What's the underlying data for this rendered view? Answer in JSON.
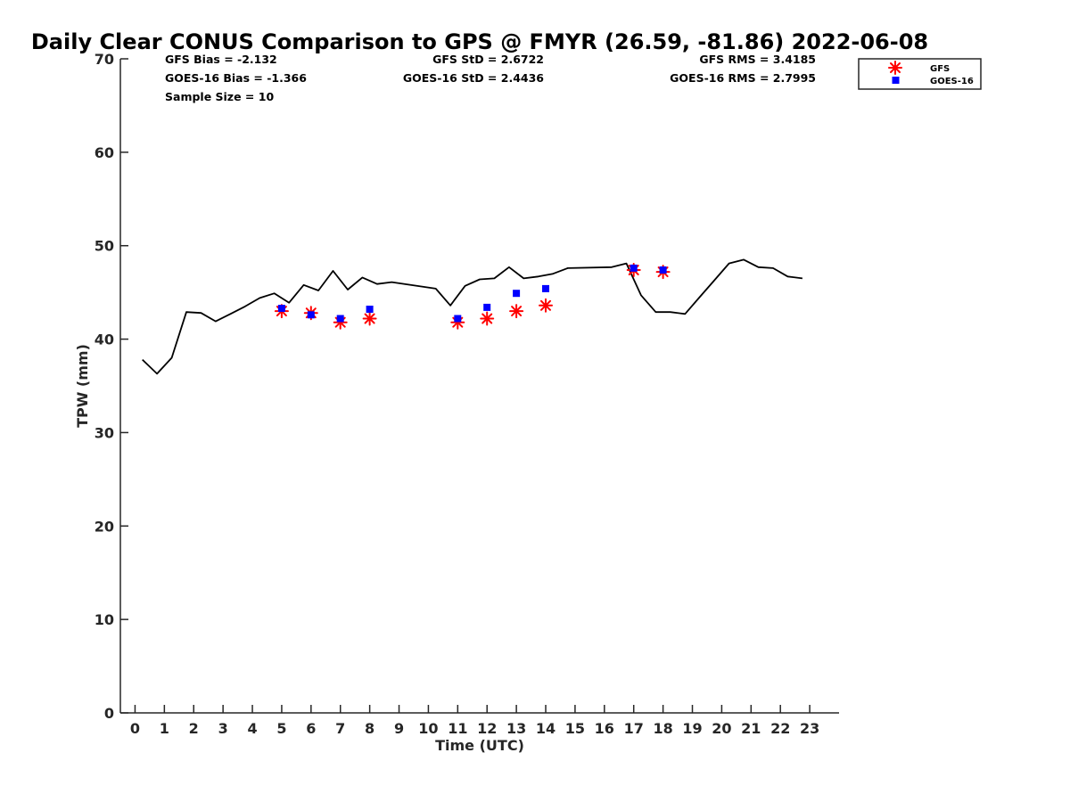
{
  "chart_data": {
    "type": "line",
    "title": "Daily Clear CONUS Comparison to GPS @ FMYR (26.59, -81.86) 2022-06-08",
    "xlabel": "Time (UTC)",
    "ylabel": "TPW (mm)",
    "xlim": [
      -0.5,
      24
    ],
    "ylim": [
      0,
      70
    ],
    "xticks": [
      0,
      1,
      2,
      3,
      4,
      5,
      6,
      7,
      8,
      9,
      10,
      11,
      12,
      13,
      14,
      15,
      16,
      17,
      18,
      19,
      20,
      21,
      22,
      23
    ],
    "yticks": [
      0,
      10,
      20,
      30,
      40,
      50,
      60,
      70
    ],
    "grid": false,
    "legend_position": "top-right",
    "series": [
      {
        "role": "gps-line",
        "color": "#000000",
        "points": [
          [
            0.25,
            37.8
          ],
          [
            0.75,
            36.3
          ],
          [
            1.25,
            38.0
          ],
          [
            1.75,
            42.9
          ],
          [
            2.25,
            42.8
          ],
          [
            2.75,
            41.9
          ],
          [
            3.25,
            42.7
          ],
          [
            3.75,
            43.5
          ],
          [
            4.25,
            44.4
          ],
          [
            4.75,
            44.9
          ],
          [
            5.25,
            43.9
          ],
          [
            5.75,
            45.8
          ],
          [
            6.25,
            45.2
          ],
          [
            6.75,
            47.3
          ],
          [
            7.25,
            45.3
          ],
          [
            7.75,
            46.6
          ],
          [
            8.25,
            45.9
          ],
          [
            8.75,
            46.1
          ],
          [
            10.25,
            45.4
          ],
          [
            10.75,
            43.6
          ],
          [
            11.25,
            45.7
          ],
          [
            11.75,
            46.4
          ],
          [
            12.25,
            46.5
          ],
          [
            12.75,
            47.7
          ],
          [
            13.25,
            46.5
          ],
          [
            13.75,
            46.7
          ],
          [
            14.25,
            47.0
          ],
          [
            14.75,
            47.6
          ],
          [
            16.25,
            47.7
          ],
          [
            16.75,
            48.1
          ],
          [
            17.25,
            44.7
          ],
          [
            17.75,
            42.9
          ],
          [
            18.25,
            42.9
          ],
          [
            18.75,
            42.7
          ],
          [
            19.25,
            44.5
          ],
          [
            19.75,
            46.3
          ],
          [
            20.25,
            48.1
          ],
          [
            20.75,
            48.5
          ],
          [
            21.25,
            47.7
          ],
          [
            21.75,
            47.6
          ],
          [
            22.25,
            46.7
          ],
          [
            22.75,
            46.5
          ]
        ]
      },
      {
        "name": "GFS",
        "marker": "asterisk",
        "color": "#ff0000",
        "points": [
          [
            5,
            43.0
          ],
          [
            6,
            42.8
          ],
          [
            7,
            41.8
          ],
          [
            8,
            42.2
          ],
          [
            11,
            41.8
          ],
          [
            12,
            42.2
          ],
          [
            13,
            43.0
          ],
          [
            14,
            43.6
          ],
          [
            17,
            47.4
          ],
          [
            18,
            47.2
          ]
        ]
      },
      {
        "name": "GOES-16",
        "marker": "square",
        "color": "#0000ff",
        "points": [
          [
            5,
            43.3
          ],
          [
            6,
            42.6
          ],
          [
            7,
            42.2
          ],
          [
            8,
            43.2
          ],
          [
            11,
            42.2
          ],
          [
            12,
            43.4
          ],
          [
            13,
            44.9
          ],
          [
            14,
            45.4
          ],
          [
            17,
            47.6
          ],
          [
            18,
            47.4
          ]
        ]
      }
    ],
    "annotations": [
      "GFS Bias = -2.132",
      "GOES-16 Bias = -1.366",
      "Sample Size = 10",
      "GFS StD = 2.6722",
      "GOES-16 StD = 2.4436",
      "GFS RMS = 3.4185",
      "GOES-16 RMS = 2.7995"
    ]
  }
}
